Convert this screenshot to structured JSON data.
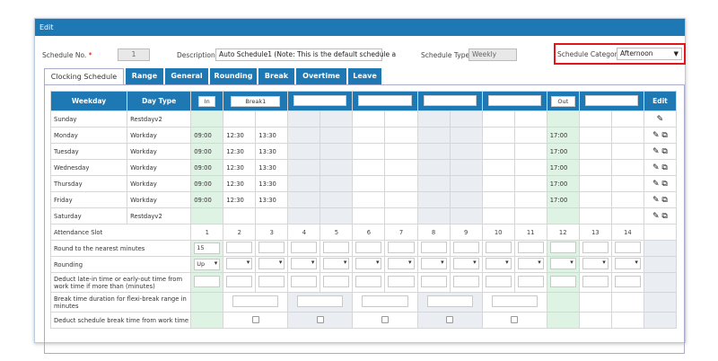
{
  "panel": {
    "title": "Edit"
  },
  "header": {
    "schedule_no_label": "Schedule No.",
    "required_mark": "*",
    "schedule_no_value": "1",
    "description_label": "Description",
    "description_value": "Auto Schedule1 (Note: This is the default schedule a",
    "schedule_type_label": "Schedule Type",
    "schedule_type_value": "Weekly",
    "schedule_category_label": "Schedule Category",
    "schedule_category_value": "Afternoon"
  },
  "tabs": [
    "Clocking Schedule",
    "Range",
    "General",
    "Rounding",
    "Break",
    "Overtime",
    "Leave"
  ],
  "grid": {
    "col_weekday": "Weekday",
    "col_daytype": "Day Type",
    "col_edit": "Edit",
    "slot_in": "In",
    "slot_break1": "Break1",
    "slot_out": "Out",
    "days": [
      {
        "weekday": "Sunday",
        "daytype": "Restdayv2",
        "in": "",
        "b1": "",
        "b2": "",
        "out": ""
      },
      {
        "weekday": "Monday",
        "daytype": "Workday",
        "in": "09:00",
        "b1": "12:30",
        "b2": "13:30",
        "out": "17:00"
      },
      {
        "weekday": "Tuesday",
        "daytype": "Workday",
        "in": "09:00",
        "b1": "12:30",
        "b2": "13:30",
        "out": "17:00"
      },
      {
        "weekday": "Wednesday",
        "daytype": "Workday",
        "in": "09:00",
        "b1": "12:30",
        "b2": "13:30",
        "out": "17:00"
      },
      {
        "weekday": "Thursday",
        "daytype": "Workday",
        "in": "09:00",
        "b1": "12:30",
        "b2": "13:30",
        "out": "17:00"
      },
      {
        "weekday": "Friday",
        "daytype": "Workday",
        "in": "09:00",
        "b1": "12:30",
        "b2": "13:30",
        "out": "17:00"
      },
      {
        "weekday": "Saturday",
        "daytype": "Restdayv2",
        "in": "",
        "b1": "",
        "b2": "",
        "out": ""
      }
    ],
    "attendance_slot_label": "Attendance Slot",
    "slot_numbers": [
      "1",
      "2",
      "3",
      "4",
      "5",
      "6",
      "7",
      "8",
      "9",
      "10",
      "11",
      "12",
      "13",
      "14"
    ],
    "round_label": "Round to the nearest minutes",
    "round_value": "15",
    "rounding_label": "Rounding",
    "rounding_value": "Up",
    "deduct_late_label_1": "Deduct late-in time or early-out time from",
    "deduct_late_label_2": "work time if more than (minutes)",
    "break_flexi_label_1": "Break time duration for flexi-break range in",
    "break_flexi_label_2": "minutes",
    "deduct_break_label": "Deduct schedule break time from work time"
  },
  "icons": {
    "edit": "pencil-icon",
    "copy": "copy-icon"
  }
}
